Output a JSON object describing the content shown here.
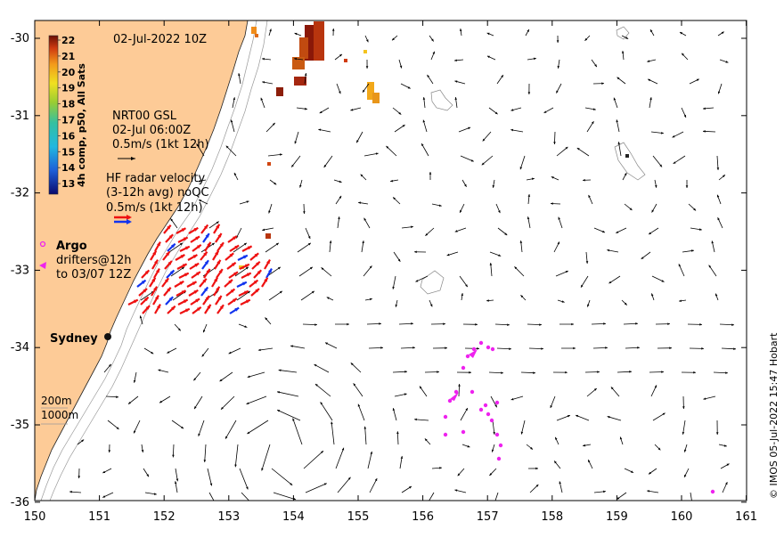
{
  "date_title": "02-Jul-2022 10Z",
  "colorbar": {
    "label": "4h comp, p50, All Sats",
    "ticks": [
      "22",
      "21",
      "20",
      "19",
      "18",
      "17",
      "16",
      "15",
      "14",
      "13"
    ]
  },
  "nrt": {
    "line1": "NRT00 GSL",
    "line2": "02-Jul 06:00Z",
    "line3": "0.5m/s (1kt 12h)"
  },
  "hf": {
    "line1": "HF radar velocity",
    "line2": "(3-12h avg) noQC",
    "line3": "0.5m/s (1kt 12h)"
  },
  "argo": {
    "label": "Argo",
    "drifters1": "drifters@12h",
    "drifters2": "to 03/07 12Z"
  },
  "city": {
    "name": "Sydney"
  },
  "isobaths": {
    "label1": "200m",
    "label2": "1000m"
  },
  "credit": "© IMOS 05-Jul-2022 15:47 Hobart",
  "axes": {
    "x_ticks": [
      "150",
      "151",
      "152",
      "153",
      "154",
      "155",
      "156",
      "157",
      "158",
      "159",
      "160",
      "161"
    ],
    "y_ticks": [
      "-30",
      "-31",
      "-32",
      "-33",
      "-34",
      "-35",
      "-36"
    ],
    "lon_range": [
      150,
      161
    ],
    "lat_range": [
      -36,
      -30
    ]
  },
  "colors": {
    "land": "#fdcb97",
    "hf_red": "#ee1111",
    "hf_blue": "#1133ee",
    "argo": "#ee22ee"
  }
}
